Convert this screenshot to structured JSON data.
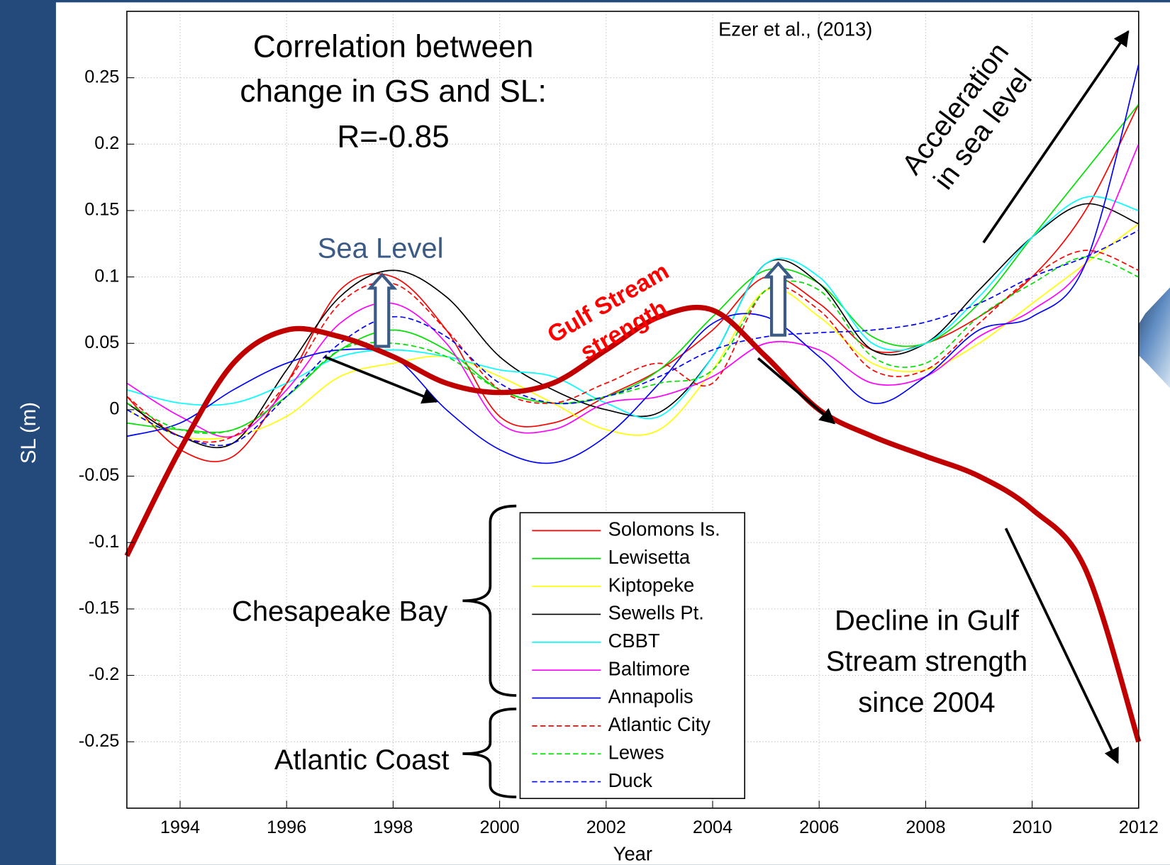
{
  "chart_data": {
    "type": "line",
    "annotations": {
      "source": "Ezer et al., (2013)",
      "correlation": [
        "Correlation between",
        "change in GS and SL:",
        "R=-0.85"
      ],
      "sea_level": "Sea Level",
      "acceleration": [
        "Acceleration",
        "in sea level"
      ],
      "decline": [
        "Decline in Gulf",
        "Stream strength",
        "since 2004"
      ],
      "chesapeake": "Chesapeake Bay",
      "atlantic": "Atlantic Coast"
    },
    "xlabel": "Year",
    "ylabel": "SL (m)",
    "x": [
      1993,
      1994,
      1995,
      1996,
      1997,
      1998,
      1999,
      2000,
      2001,
      2002,
      2003,
      2004,
      2005,
      2006,
      2007,
      2008,
      2009,
      2010,
      2011,
      2012
    ],
    "xlim": [
      1993,
      2012
    ],
    "xticks": [
      1994,
      1996,
      1998,
      2000,
      2002,
      2004,
      2006,
      2008,
      2010,
      2012
    ],
    "ylim": [
      -0.3,
      0.3
    ],
    "yticks": [
      -0.25,
      -0.2,
      -0.15,
      -0.1,
      -0.05,
      0,
      0.05,
      0.1,
      0.15,
      0.2,
      0.25
    ],
    "grid": true,
    "series": [
      {
        "name": "Solomons Is.",
        "color": "#ff0000",
        "style": "solid",
        "values": [
          0.01,
          -0.03,
          -0.035,
          0.02,
          0.09,
          0.1,
          0.06,
          -0.005,
          -0.01,
          0.01,
          0.03,
          0.06,
          0.1,
          0.08,
          0.045,
          0.05,
          0.07,
          0.1,
          0.15,
          0.23
        ]
      },
      {
        "name": "Lewisetta",
        "color": "#00e000",
        "style": "solid",
        "values": [
          -0.01,
          -0.015,
          -0.015,
          0.01,
          0.045,
          0.06,
          0.045,
          0.015,
          0.005,
          0.01,
          0.03,
          0.07,
          0.105,
          0.095,
          0.055,
          0.05,
          0.08,
          0.13,
          0.18,
          0.23
        ]
      },
      {
        "name": "Kiptopeke",
        "color": "#ffff00",
        "style": "solid",
        "values": [
          0.0,
          -0.02,
          -0.02,
          -0.005,
          0.025,
          0.035,
          0.04,
          0.025,
          0.005,
          -0.015,
          -0.015,
          0.03,
          0.09,
          0.07,
          0.035,
          0.03,
          0.05,
          0.08,
          0.11,
          0.14
        ]
      },
      {
        "name": "Sewells Pt.",
        "color": "#000000",
        "style": "solid",
        "values": [
          0.005,
          -0.02,
          -0.025,
          0.03,
          0.085,
          0.105,
          0.085,
          0.04,
          0.015,
          0.0,
          -0.002,
          0.04,
          0.11,
          0.095,
          0.045,
          0.05,
          0.09,
          0.13,
          0.155,
          0.14
        ]
      },
      {
        "name": "CBBT",
        "color": "#00ffff",
        "style": "solid",
        "values": [
          0.015,
          0.005,
          0.005,
          0.02,
          0.04,
          0.045,
          0.04,
          0.03,
          0.025,
          0.005,
          -0.005,
          0.04,
          0.11,
          0.1,
          0.05,
          0.05,
          0.085,
          0.13,
          0.16,
          0.15
        ]
      },
      {
        "name": "Baltimore",
        "color": "#ff00ff",
        "style": "solid",
        "values": [
          0.02,
          -0.005,
          -0.02,
          0.015,
          0.065,
          0.08,
          0.05,
          -0.01,
          -0.015,
          0.005,
          0.01,
          0.025,
          0.05,
          0.045,
          0.02,
          0.025,
          0.055,
          0.075,
          0.11,
          0.2
        ]
      },
      {
        "name": "Annapolis",
        "color": "#0000ff",
        "style": "solid",
        "values": [
          -0.02,
          -0.01,
          0.015,
          0.035,
          0.045,
          0.04,
          0.0,
          -0.03,
          -0.04,
          -0.02,
          0.02,
          0.065,
          0.07,
          0.04,
          0.005,
          0.025,
          0.06,
          0.07,
          0.11,
          0.26
        ]
      },
      {
        "name": "Atlantic City",
        "color": "#ff0000",
        "style": "dashed",
        "values": [
          0.01,
          -0.02,
          -0.02,
          0.02,
          0.08,
          0.095,
          0.06,
          0.015,
          0.005,
          0.02,
          0.035,
          0.02,
          0.09,
          0.075,
          0.03,
          0.03,
          0.065,
          0.1,
          0.12,
          0.105
        ]
      },
      {
        "name": "Lewes",
        "color": "#00e000",
        "style": "dashed",
        "values": [
          0.005,
          -0.015,
          -0.015,
          0.01,
          0.045,
          0.05,
          0.04,
          0.015,
          0.005,
          0.01,
          0.02,
          0.03,
          0.09,
          0.09,
          0.04,
          0.035,
          0.07,
          0.095,
          0.115,
          0.1
        ]
      },
      {
        "name": "Duck",
        "color": "#0000ff",
        "style": "dashed",
        "values": [
          0.0,
          -0.02,
          -0.025,
          0.01,
          0.05,
          0.07,
          0.055,
          0.02,
          0.005,
          0.01,
          0.025,
          0.045,
          0.055,
          0.058,
          0.06,
          0.066,
          0.08,
          0.1,
          0.115,
          0.135
        ]
      }
    ],
    "gulf_stream": {
      "label": [
        "Gulf Stream",
        "strength"
      ],
      "color": "#c00000",
      "values": [
        -0.11,
        -0.03,
        0.035,
        0.06,
        0.055,
        0.04,
        0.02,
        0.013,
        0.02,
        0.045,
        0.07,
        0.075,
        0.04,
        0.0,
        -0.02,
        -0.035,
        -0.05,
        -0.075,
        -0.12,
        -0.25
      ]
    }
  }
}
